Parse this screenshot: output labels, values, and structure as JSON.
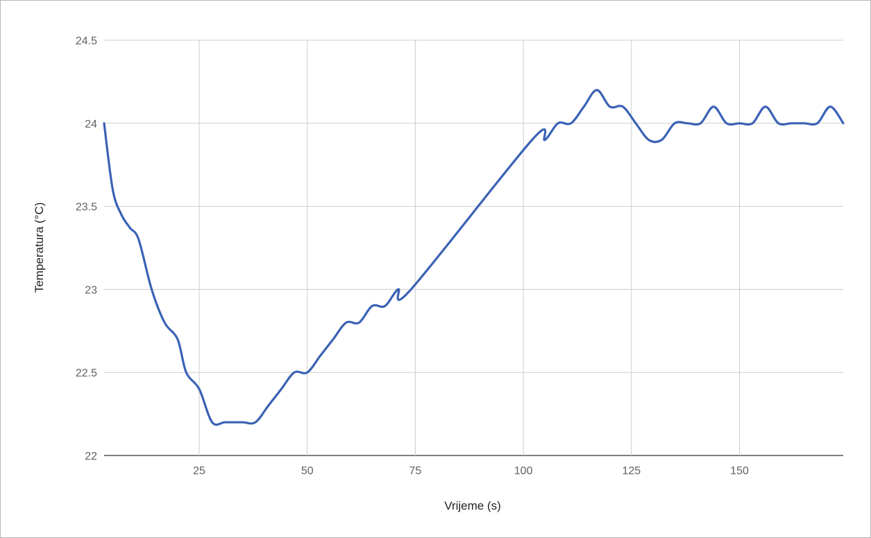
{
  "chart_data": {
    "type": "line",
    "title": "",
    "xlabel": "Vrijeme (s)",
    "ylabel": "Temperatura (°C)",
    "xlim": [
      3,
      174
    ],
    "ylim": [
      22,
      24.5
    ],
    "x_ticks": [
      25,
      50,
      75,
      100,
      125,
      150
    ],
    "y_ticks": [
      22,
      22.5,
      23,
      23.5,
      24,
      24.5
    ],
    "x_tick_labels": [
      "25",
      "50",
      "75",
      "100",
      "125",
      "150"
    ],
    "y_tick_labels": [
      "22",
      "22.5",
      "23",
      "23.5",
      "24",
      "24.5"
    ],
    "grid": true,
    "legend": "none",
    "series": [
      {
        "color": "#3a62b5",
        "points": [
          [
            3,
            24.0
          ],
          [
            5,
            23.6
          ],
          [
            7,
            23.45
          ],
          [
            9,
            23.37
          ],
          [
            11,
            23.3
          ],
          [
            14,
            23.0
          ],
          [
            17,
            22.8
          ],
          [
            20,
            22.7
          ],
          [
            22,
            22.5
          ],
          [
            25,
            22.4
          ],
          [
            28,
            22.2
          ],
          [
            31,
            22.2
          ],
          [
            35,
            22.2
          ],
          [
            38,
            22.2
          ],
          [
            41,
            22.3
          ],
          [
            44,
            22.4
          ],
          [
            47,
            22.5
          ],
          [
            50,
            22.5
          ],
          [
            53,
            22.6
          ],
          [
            56,
            22.7
          ],
          [
            59,
            22.8
          ],
          [
            62,
            22.8
          ],
          [
            65,
            22.9
          ],
          [
            68,
            22.9
          ],
          [
            71,
            23.0
          ],
          [
            74,
            23.0
          ],
          [
            102,
            23.9
          ],
          [
            105,
            23.9
          ],
          [
            108,
            24.0
          ],
          [
            111,
            24.0
          ],
          [
            114,
            24.1
          ],
          [
            117,
            24.2
          ],
          [
            120,
            24.1
          ],
          [
            123,
            24.1
          ],
          [
            126,
            24.0
          ],
          [
            129,
            23.9
          ],
          [
            132,
            23.9
          ],
          [
            135,
            24.0
          ],
          [
            138,
            24.0
          ],
          [
            141,
            24.0
          ],
          [
            144,
            24.1
          ],
          [
            147,
            24.0
          ],
          [
            150,
            24.0
          ],
          [
            153,
            24.0
          ],
          [
            156,
            24.1
          ],
          [
            159,
            24.0
          ],
          [
            162,
            24.0
          ],
          [
            165,
            24.0
          ],
          [
            168,
            24.0
          ],
          [
            171,
            24.1
          ],
          [
            174,
            24.0
          ]
        ]
      }
    ]
  }
}
